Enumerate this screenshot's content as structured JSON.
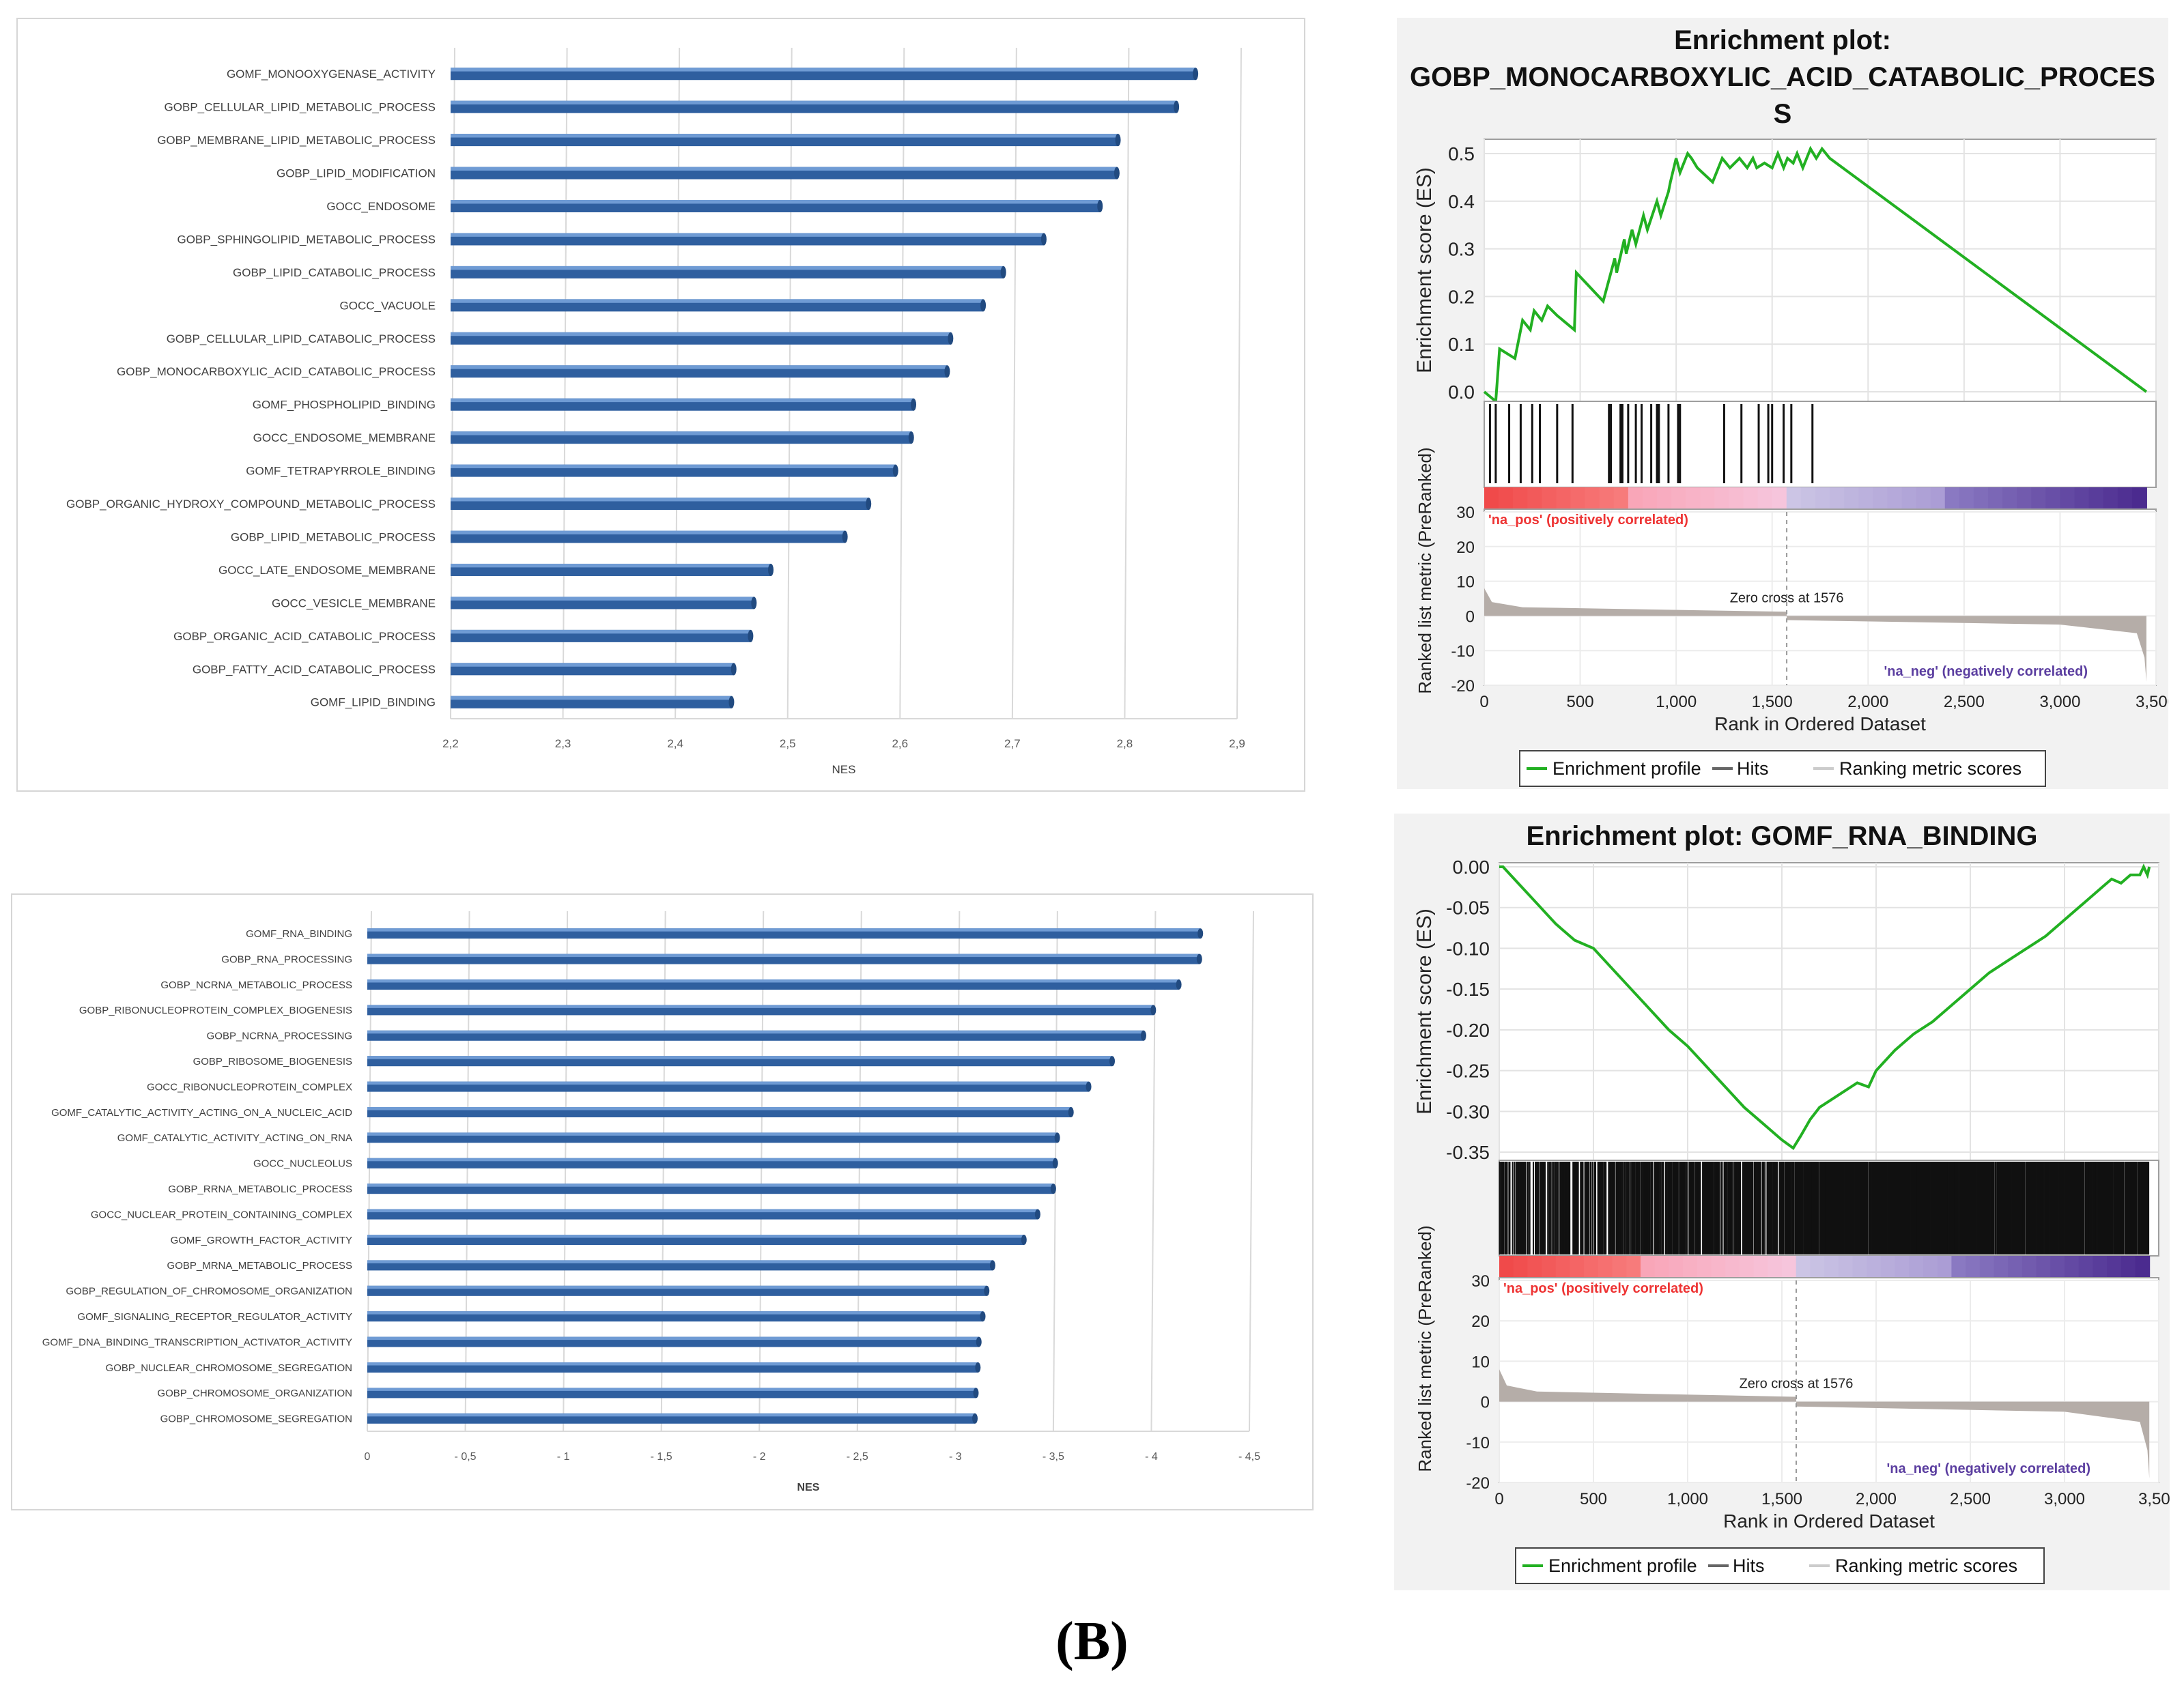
{
  "figure_label": "(B)",
  "chart_data": [
    {
      "id": "up-bar",
      "type": "bar",
      "orientation": "horizontal",
      "title": "",
      "xlabel": "NES",
      "ylabel": "",
      "xlim": [
        2.2,
        2.9
      ],
      "ticks": [
        2.2,
        2.3,
        2.4,
        2.5,
        2.6,
        2.7,
        2.8,
        2.9
      ],
      "tick_labels": [
        "2,2",
        "2,3",
        "2,4",
        "2,5",
        "2,6",
        "2,7",
        "2,8",
        "2,9"
      ],
      "bar_color": "#2f5f9f",
      "categories": [
        "GOMF_MONOOXYGENASE_ACTIVITY",
        "GOBP_CELLULAR_LIPID_METABOLIC_PROCESS",
        "GOBP_MEMBRANE_LIPID_METABOLIC_PROCESS",
        "GOBP_LIPID_MODIFICATION",
        "GOCC_ENDOSOME",
        "GOBP_SPHINGOLIPID_METABOLIC_PROCESS",
        "GOBP_LIPID_CATABOLIC_PROCESS",
        "GOCC_VACUOLE",
        "GOBP_CELLULAR_LIPID_CATABOLIC_PROCESS",
        "GOBP_MONOCARBOXYLIC_ACID_CATABOLIC_PROCESS",
        "GOMF_PHOSPHOLIPID_BINDING",
        "GOCC_ENDOSOME_MEMBRANE",
        "GOMF_TETRAPYRROLE_BINDING",
        "GOBP_ORGANIC_HYDROXY_COMPOUND_METABOLIC_PROCESS",
        "GOBP_LIPID_METABOLIC_PROCESS",
        "GOCC_LATE_ENDOSOME_MEMBRANE",
        "GOCC_VESICLE_MEMBRANE",
        "GOBP_ORGANIC_ACID_CATABOLIC_PROCESS",
        "GOBP_FATTY_ACID_CATABOLIC_PROCESS",
        "GOMF_LIPID_BINDING"
      ],
      "values": [
        2.863,
        2.846,
        2.794,
        2.793,
        2.778,
        2.728,
        2.692,
        2.674,
        2.645,
        2.642,
        2.612,
        2.61,
        2.596,
        2.572,
        2.551,
        2.485,
        2.47,
        2.467,
        2.452,
        2.45
      ]
    },
    {
      "id": "down-bar",
      "type": "bar",
      "orientation": "horizontal",
      "title": "",
      "xlabel": "NES",
      "ylabel": "",
      "xlim": [
        0,
        -4.5
      ],
      "ticks": [
        0,
        -0.5,
        -1,
        -1.5,
        -2,
        -2.5,
        -3,
        -3.5,
        -4,
        -4.5
      ],
      "tick_labels": [
        "0",
        "- 0,5",
        "- 1",
        "- 1,5",
        "- 2",
        "- 2,5",
        "- 3",
        "- 3,5",
        "- 4",
        "- 4,5"
      ],
      "bar_color": "#2f5f9f",
      "categories": [
        "GOMF_RNA_BINDING",
        "GOBP_RNA_PROCESSING",
        "GOBP_NCRNA_METABOLIC_PROCESS",
        "GOBP_RIBONUCLEOPROTEIN_COMPLEX_BIOGENESIS",
        "GOBP_NCRNA_PROCESSING",
        "GOBP_RIBOSOME_BIOGENESIS",
        "GOCC_RIBONUCLEOPROTEIN_COMPLEX",
        "GOMF_CATALYTIC_ACTIVITY_ACTING_ON_A_NUCLEIC_ACID",
        "GOMF_CATALYTIC_ACTIVITY_ACTING_ON_RNA",
        "GOCC_NUCLEOLUS",
        "GOBP_RRNA_METABOLIC_PROCESS",
        "GOCC_NUCLEAR_PROTEIN_CONTAINING_COMPLEX",
        "GOMF_GROWTH_FACTOR_ACTIVITY",
        "GOBP_MRNA_METABOLIC_PROCESS",
        "GOBP_REGULATION_OF_CHROMOSOME_ORGANIZATION",
        "GOMF_SIGNALING_RECEPTOR_REGULATOR_ACTIVITY",
        "GOMF_DNA_BINDING_TRANSCRIPTION_ACTIVATOR_ACTIVITY",
        "GOBP_NUCLEAR_CHROMOSOME_SEGREGATION",
        "GOBP_CHROMOSOME_ORGANIZATION",
        "GOBP_CHROMOSOME_SEGREGATION"
      ],
      "values": [
        -4.25,
        -4.245,
        -4.14,
        -4.01,
        -3.96,
        -3.8,
        -3.68,
        -3.59,
        -3.52,
        -3.51,
        -3.5,
        -3.42,
        -3.35,
        -3.19,
        -3.16,
        -3.14,
        -3.12,
        -3.115,
        -3.105,
        -3.1
      ]
    },
    {
      "id": "gsea-top",
      "type": "line",
      "title": "Enrichment plot:",
      "title_lines": [
        "Enrichment plot:",
        "GOBP_MONOCARBOXYLIC_ACID_CATABOLIC_PROCES",
        "S"
      ],
      "xlabel": "Rank in Ordered Dataset",
      "ylabel": "Enrichment score (ES)",
      "ylabel_bottom": "Ranked list metric (PreRanked)",
      "xlim": [
        0,
        3500
      ],
      "ylim": [
        -0.02,
        0.53
      ],
      "x_ticks": [
        0,
        500,
        1000,
        1500,
        2000,
        2500,
        3000,
        3500
      ],
      "x_tick_labels": [
        "0",
        "500",
        "1,000",
        "1,500",
        "2,000",
        "2,500",
        "3,000",
        "3,500"
      ],
      "y_ticks": [
        0.0,
        0.1,
        0.2,
        0.3,
        0.4,
        0.5
      ],
      "y_tick_labels": [
        "0.0",
        "0.1",
        "0.2",
        "0.3",
        "0.4",
        "0.5"
      ],
      "metric_ylim": [
        -20,
        30
      ],
      "metric_ticks": [
        30,
        20,
        10,
        0,
        -10,
        -20
      ],
      "metric_tick_labels": [
        "30",
        "20",
        "10",
        "0",
        "-10",
        "-20"
      ],
      "series": [
        {
          "name": "Enrichment profile",
          "color": "#22b022",
          "x": [
            0,
            60,
            80,
            160,
            200,
            240,
            260,
            300,
            330,
            380,
            470,
            480,
            620,
            680,
            690,
            730,
            740,
            770,
            790,
            830,
            850,
            900,
            920,
            960,
            970,
            1000,
            1020,
            1060,
            1080,
            1110,
            1190,
            1240,
            1280,
            1330,
            1370,
            1400,
            1420,
            1460,
            1500,
            1530,
            1560,
            1580,
            1610,
            1630,
            1660,
            1700,
            1730,
            1760,
            1800,
            3450
          ],
          "y": [
            0.0,
            -0.02,
            0.09,
            0.07,
            0.15,
            0.13,
            0.17,
            0.15,
            0.18,
            0.16,
            0.13,
            0.25,
            0.19,
            0.28,
            0.25,
            0.32,
            0.29,
            0.34,
            0.31,
            0.37,
            0.34,
            0.4,
            0.37,
            0.42,
            0.44,
            0.49,
            0.46,
            0.5,
            0.49,
            0.47,
            0.44,
            0.49,
            0.47,
            0.49,
            0.47,
            0.49,
            0.47,
            0.48,
            0.47,
            0.5,
            0.47,
            0.49,
            0.48,
            0.5,
            0.47,
            0.51,
            0.49,
            0.51,
            0.49,
            0.0
          ]
        }
      ],
      "hits": [
        30,
        60,
        130,
        190,
        250,
        290,
        380,
        460,
        650,
        660,
        710,
        720,
        750,
        790,
        820,
        870,
        900,
        910,
        960,
        1010,
        1020,
        1250,
        1340,
        1430,
        1480,
        1500,
        1560,
        1600,
        1710
      ],
      "zero_cross_label": "Zero cross at 1576",
      "zero_cross": 1576,
      "pos_label": "'na_pos' (positively correlated)",
      "neg_label": "'na_neg' (negatively correlated)",
      "legend": [
        "Enrichment profile",
        "Hits",
        "Ranking metric scores"
      ]
    },
    {
      "id": "gsea-bottom",
      "type": "line",
      "title": "Enrichment plot: GOMF_RNA_BINDING",
      "title_lines": [
        "Enrichment plot: GOMF_RNA_BINDING"
      ],
      "xlabel": "Rank in Ordered Dataset",
      "ylabel": "Enrichment score (ES)",
      "ylabel_bottom": "Ranked list metric (PreRanked)",
      "xlim": [
        0,
        3500
      ],
      "ylim": [
        -0.36,
        0.005
      ],
      "x_ticks": [
        0,
        500,
        1000,
        1500,
        2000,
        2500,
        3000,
        3500
      ],
      "x_tick_labels": [
        "0",
        "500",
        "1,000",
        "1,500",
        "2,000",
        "2,500",
        "3,000",
        "3,500"
      ],
      "y_ticks": [
        0.0,
        -0.05,
        -0.1,
        -0.15,
        -0.2,
        -0.25,
        -0.3,
        -0.35
      ],
      "y_tick_labels": [
        "0.00",
        "-0.05",
        "-0.10",
        "-0.15",
        "-0.20",
        "-0.25",
        "-0.30",
        "-0.35"
      ],
      "metric_ylim": [
        -20,
        30
      ],
      "metric_ticks": [
        30,
        20,
        10,
        0,
        -10,
        -20
      ],
      "metric_tick_labels": [
        "30",
        "20",
        "10",
        "0",
        "-10",
        "-20"
      ],
      "series": [
        {
          "name": "Enrichment profile",
          "color": "#22b022",
          "x": [
            0,
            20,
            100,
            200,
            300,
            400,
            500,
            600,
            700,
            800,
            900,
            1000,
            1100,
            1200,
            1300,
            1400,
            1500,
            1560,
            1600,
            1650,
            1700,
            1800,
            1900,
            1960,
            2000,
            2100,
            2200,
            2300,
            2400,
            2500,
            2600,
            2700,
            2800,
            2900,
            3000,
            3100,
            3200,
            3250,
            3300,
            3350,
            3400,
            3420,
            3440,
            3450
          ],
          "y": [
            0.0,
            0.0,
            -0.02,
            -0.045,
            -0.07,
            -0.09,
            -0.1,
            -0.125,
            -0.15,
            -0.175,
            -0.2,
            -0.22,
            -0.245,
            -0.27,
            -0.295,
            -0.315,
            -0.335,
            -0.345,
            -0.33,
            -0.31,
            -0.295,
            -0.28,
            -0.265,
            -0.27,
            -0.25,
            -0.225,
            -0.205,
            -0.19,
            -0.17,
            -0.15,
            -0.13,
            -0.115,
            -0.1,
            -0.085,
            -0.065,
            -0.045,
            -0.025,
            -0.015,
            -0.02,
            -0.01,
            -0.01,
            0.0,
            -0.01,
            0.0
          ]
        }
      ],
      "hits_dense": true,
      "zero_cross_label": "Zero cross at 1576",
      "zero_cross": 1576,
      "pos_label": "'na_pos' (positively correlated)",
      "neg_label": "'na_neg' (negatively correlated)",
      "legend": [
        "Enrichment profile",
        "Hits",
        "Ranking metric scores"
      ]
    }
  ]
}
